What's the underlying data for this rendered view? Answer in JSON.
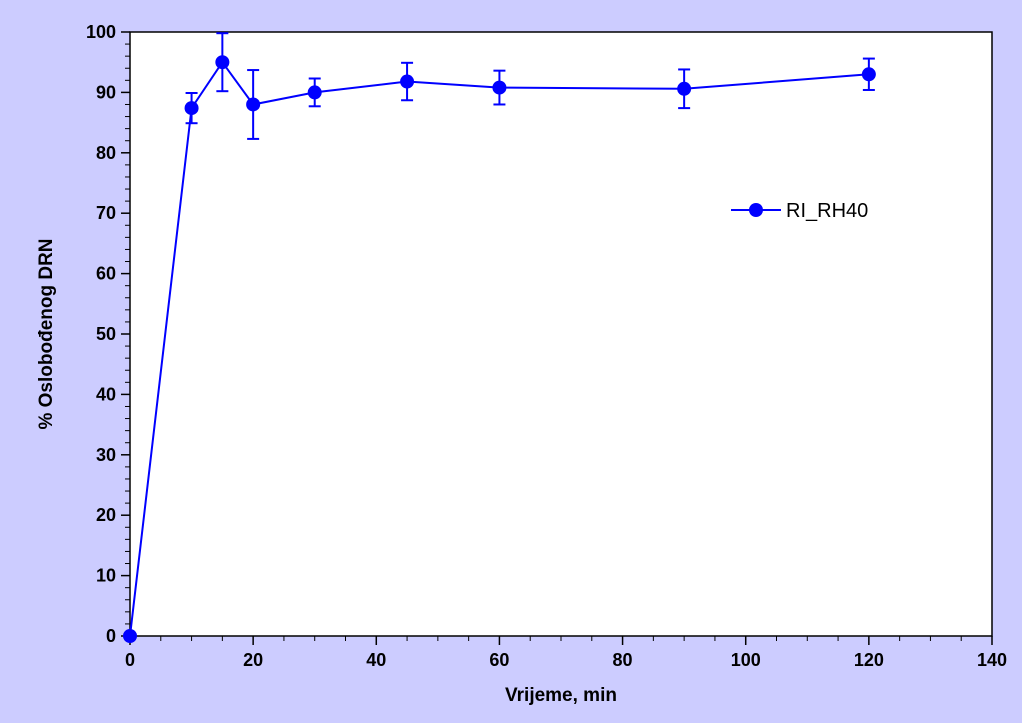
{
  "colors": {
    "background": "#ccccff",
    "plot_area": "#ffffff",
    "series": "#0000ff",
    "axis": "#000000"
  },
  "chart_data": {
    "type": "line",
    "title": "",
    "xlabel": "Vrijeme, min",
    "ylabel": "% Oslobođenog DRN",
    "xlim": [
      0,
      140
    ],
    "ylim": [
      0,
      100
    ],
    "xticks": [
      0,
      20,
      40,
      60,
      80,
      100,
      120,
      140
    ],
    "yticks": [
      0,
      10,
      20,
      30,
      40,
      50,
      60,
      70,
      80,
      90,
      100
    ],
    "x_minor_step": 5,
    "y_minor_step": 2,
    "grid": false,
    "legend_position": "right",
    "series": [
      {
        "name": "RI_RH40",
        "marker": "circle",
        "color": "#0000ff",
        "x": [
          0,
          10,
          15,
          20,
          30,
          45,
          60,
          90,
          120
        ],
        "y": [
          0,
          87.4,
          95.0,
          88.0,
          90.0,
          91.8,
          90.8,
          90.6,
          93.0
        ],
        "error": [
          0,
          2.5,
          4.8,
          5.7,
          2.3,
          3.1,
          2.8,
          3.2,
          2.6
        ]
      }
    ]
  }
}
